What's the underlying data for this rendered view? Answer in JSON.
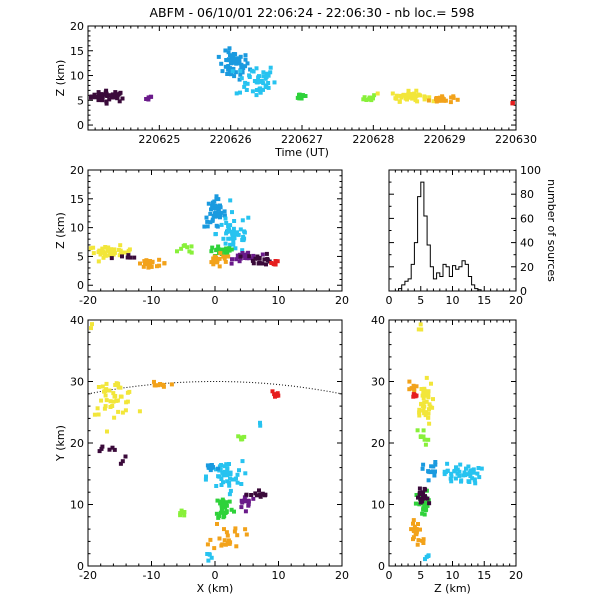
{
  "title": "ABFM - 06/10/01 22:06:24 - 22:06:30 - nb loc.=    598",
  "chart_data": [
    {
      "id": "time_height",
      "type": "scatter",
      "xlabel": "Time (UT)",
      "ylabel": "Z (km)",
      "xlim": [
        220624.0,
        220630.0
      ],
      "ylim": [
        -1,
        20
      ],
      "xticks": [
        "220625",
        "220626",
        "220627",
        "220628",
        "220629",
        "220630"
      ],
      "yticks": [
        "0",
        "5",
        "10",
        "15",
        "20"
      ],
      "clusters": [
        {
          "t": 220624.3,
          "z": 5.8,
          "sd_t": 0.18,
          "sd_z": 0.8,
          "n": 40,
          "color": "#3a0a3a"
        },
        {
          "t": 220624.85,
          "z": 5.3,
          "sd_t": 0.03,
          "sd_z": 0.4,
          "n": 5,
          "color": "#6a1a8a"
        },
        {
          "t": 220626.05,
          "z": 12.0,
          "sd_t": 0.15,
          "sd_z": 2.0,
          "n": 55,
          "color": "#1a9adf"
        },
        {
          "t": 220626.35,
          "z": 9.0,
          "sd_t": 0.2,
          "sd_z": 2.5,
          "n": 45,
          "color": "#27c3f0"
        },
        {
          "t": 220627.0,
          "z": 5.8,
          "sd_t": 0.06,
          "sd_z": 0.5,
          "n": 14,
          "color": "#2fd23a"
        },
        {
          "t": 220627.95,
          "z": 5.5,
          "sd_t": 0.06,
          "sd_z": 0.5,
          "n": 12,
          "color": "#88f03a"
        },
        {
          "t": 220628.5,
          "z": 5.8,
          "sd_t": 0.18,
          "sd_z": 0.7,
          "n": 45,
          "color": "#f2e63a"
        },
        {
          "t": 220628.95,
          "z": 5.2,
          "sd_t": 0.12,
          "sd_z": 0.5,
          "n": 22,
          "color": "#f2a21a"
        },
        {
          "t": 220629.97,
          "z": 4.6,
          "sd_t": 0.02,
          "sd_z": 0.4,
          "n": 4,
          "color": "#e61e1e"
        }
      ]
    },
    {
      "id": "x_height",
      "type": "scatter",
      "xlabel": "",
      "ylabel": "Z (km)",
      "xlim": [
        -20,
        20
      ],
      "ylim": [
        -1,
        20
      ],
      "xticks": [
        "-20",
        "-10",
        "0",
        "10",
        "20"
      ],
      "yticks": [
        "0",
        "5",
        "10",
        "15",
        "20"
      ],
      "clusters": [
        {
          "x": -16.5,
          "z": 5.8,
          "sd_x": 2.5,
          "sd_z": 0.7,
          "n": 40,
          "color": "#f2e63a"
        },
        {
          "x": -10.0,
          "z": 3.8,
          "sd_x": 1.8,
          "sd_z": 0.4,
          "n": 18,
          "color": "#f2a21a"
        },
        {
          "x": -14.0,
          "z": 4.8,
          "sd_x": 2.0,
          "sd_z": 0.5,
          "n": 6,
          "color": "#3a0a3a"
        },
        {
          "x": 0.0,
          "z": 12.5,
          "sd_x": 1.2,
          "sd_z": 1.8,
          "n": 40,
          "color": "#1a9adf"
        },
        {
          "x": 3.0,
          "z": 9.0,
          "sd_x": 2.0,
          "sd_z": 2.5,
          "n": 45,
          "color": "#27c3f0"
        },
        {
          "x": 1.0,
          "z": 5.8,
          "sd_x": 1.5,
          "sd_z": 0.7,
          "n": 22,
          "color": "#2fd23a"
        },
        {
          "x": -4.5,
          "z": 6.2,
          "sd_x": 0.8,
          "sd_z": 0.5,
          "n": 8,
          "color": "#88f03a"
        },
        {
          "x": 0.5,
          "z": 4.2,
          "sd_x": 1.5,
          "sd_z": 0.8,
          "n": 18,
          "color": "#f2a21a"
        },
        {
          "x": 5.0,
          "z": 5.0,
          "sd_x": 1.5,
          "sd_z": 0.7,
          "n": 25,
          "color": "#6a1a8a"
        },
        {
          "x": 7.0,
          "z": 4.5,
          "sd_x": 1.5,
          "sd_z": 0.7,
          "n": 18,
          "color": "#3a0a3a"
        },
        {
          "x": 9.5,
          "z": 3.9,
          "sd_x": 0.4,
          "sd_z": 0.3,
          "n": 6,
          "color": "#e61e1e"
        }
      ]
    },
    {
      "id": "height_histogram",
      "type": "line",
      "xlabel": "",
      "ylabel": "number of sources",
      "xlim": [
        0,
        20
      ],
      "ylim": [
        0,
        100
      ],
      "xticks": [
        "0",
        "5",
        "10",
        "15",
        "20"
      ],
      "yticks": [
        "0",
        "20",
        "40",
        "60",
        "80",
        "100"
      ],
      "bin_width": 0.5,
      "counts": [
        0,
        0,
        0,
        2,
        5,
        8,
        10,
        22,
        40,
        78,
        90,
        62,
        38,
        20,
        10,
        15,
        12,
        22,
        20,
        12,
        21,
        18,
        20,
        25,
        22,
        12,
        5,
        2,
        1,
        0,
        0,
        0,
        0,
        0,
        0,
        0,
        0,
        0,
        0,
        0
      ]
    },
    {
      "id": "plan_view",
      "type": "scatter",
      "xlabel": "X (km)",
      "ylabel": "Y (km)",
      "xlim": [
        -20,
        20
      ],
      "ylim": [
        0,
        40
      ],
      "xticks": [
        "-20",
        "-10",
        "0",
        "10",
        "20"
      ],
      "yticks": [
        "0",
        "10",
        "20",
        "30",
        "40"
      ],
      "range_ring": {
        "center": [
          0,
          -70
        ],
        "radius": 100,
        "style": "dotted"
      },
      "clusters": [
        {
          "x": -19.5,
          "y": 38.5,
          "sd_x": 0.3,
          "sd_y": 0.5,
          "n": 3,
          "color": "#f2e63a"
        },
        {
          "x": -16.0,
          "y": 27.5,
          "sd_x": 2.5,
          "sd_y": 2.0,
          "n": 45,
          "color": "#f2e63a"
        },
        {
          "x": -9.0,
          "y": 29.3,
          "sd_x": 1.0,
          "sd_y": 0.4,
          "n": 10,
          "color": "#f2a21a"
        },
        {
          "x": -17.0,
          "y": 19.0,
          "sd_x": 2.0,
          "sd_y": 0.4,
          "n": 6,
          "color": "#3a0a3a"
        },
        {
          "x": -14.0,
          "y": 17.2,
          "sd_x": 1.0,
          "sd_y": 0.5,
          "n": 3,
          "color": "#3a0a3a"
        },
        {
          "x": 9.5,
          "y": 28.0,
          "sd_x": 0.4,
          "sd_y": 0.4,
          "n": 6,
          "color": "#e61e1e"
        },
        {
          "x": 1.5,
          "y": 14.5,
          "sd_x": 2.0,
          "sd_y": 1.8,
          "n": 45,
          "color": "#27c3f0"
        },
        {
          "x": -0.5,
          "y": 16.0,
          "sd_x": 0.8,
          "sd_y": 0.6,
          "n": 15,
          "color": "#1a9adf"
        },
        {
          "x": 4.0,
          "y": 21.0,
          "sd_x": 0.5,
          "sd_y": 1.0,
          "n": 6,
          "color": "#88f03a"
        },
        {
          "x": 7.0,
          "y": 23.0,
          "sd_x": 0.3,
          "sd_y": 0.3,
          "n": 2,
          "color": "#27c3f0"
        },
        {
          "x": 1.5,
          "y": 9.5,
          "sd_x": 1.0,
          "sd_y": 1.5,
          "n": 30,
          "color": "#2fd23a"
        },
        {
          "x": 5.0,
          "y": 10.5,
          "sd_x": 1.0,
          "sd_y": 0.8,
          "n": 15,
          "color": "#6a1a8a"
        },
        {
          "x": 7.0,
          "y": 11.5,
          "sd_x": 1.0,
          "sd_y": 0.6,
          "n": 12,
          "color": "#3a0a3a"
        },
        {
          "x": -5.5,
          "y": 8.5,
          "sd_x": 0.6,
          "sd_y": 0.4,
          "n": 6,
          "color": "#88f03a"
        },
        {
          "x": 2.0,
          "y": 5.0,
          "sd_x": 1.8,
          "sd_y": 1.8,
          "n": 22,
          "color": "#f2a21a"
        },
        {
          "x": -0.5,
          "y": 1.5,
          "sd_x": 0.4,
          "sd_y": 0.6,
          "n": 5,
          "color": "#27c3f0"
        }
      ]
    },
    {
      "id": "z_y_view",
      "type": "scatter",
      "xlabel": "Z (km)",
      "ylabel": "",
      "xlim": [
        0,
        20
      ],
      "ylim": [
        0,
        40
      ],
      "xticks": [
        "0",
        "5",
        "10",
        "15",
        "20"
      ],
      "yticks": [
        "0",
        "10",
        "20",
        "30",
        "40"
      ],
      "clusters": [
        {
          "z": 5.0,
          "y": 39.0,
          "sd_z": 0.3,
          "sd_y": 0.4,
          "n": 3,
          "color": "#f2e63a"
        },
        {
          "z": 5.5,
          "y": 26.5,
          "sd_z": 1.0,
          "sd_y": 2.5,
          "n": 40,
          "color": "#f2e63a"
        },
        {
          "z": 3.5,
          "y": 29.0,
          "sd_z": 0.5,
          "sd_y": 0.8,
          "n": 8,
          "color": "#f2a21a"
        },
        {
          "z": 4.0,
          "y": 27.5,
          "sd_z": 0.3,
          "sd_y": 0.6,
          "n": 5,
          "color": "#e61e1e"
        },
        {
          "z": 5.2,
          "y": 21.0,
          "sd_z": 0.8,
          "sd_y": 1.0,
          "n": 8,
          "color": "#88f03a"
        },
        {
          "z": 11.5,
          "y": 15.0,
          "sd_z": 2.0,
          "sd_y": 1.2,
          "n": 45,
          "color": "#27c3f0"
        },
        {
          "z": 6.5,
          "y": 15.5,
          "sd_z": 0.8,
          "sd_y": 1.0,
          "n": 15,
          "color": "#1a9adf"
        },
        {
          "z": 5.5,
          "y": 10.0,
          "sd_z": 0.8,
          "sd_y": 1.5,
          "n": 30,
          "color": "#2fd23a"
        },
        {
          "z": 5.2,
          "y": 11.0,
          "sd_z": 0.7,
          "sd_y": 1.2,
          "n": 20,
          "color": "#3a0a3a"
        },
        {
          "z": 4.5,
          "y": 5.5,
          "sd_z": 1.0,
          "sd_y": 1.8,
          "n": 20,
          "color": "#f2a21a"
        },
        {
          "z": 6.0,
          "y": 1.5,
          "sd_z": 0.3,
          "sd_y": 0.6,
          "n": 4,
          "color": "#27c3f0"
        }
      ]
    }
  ]
}
